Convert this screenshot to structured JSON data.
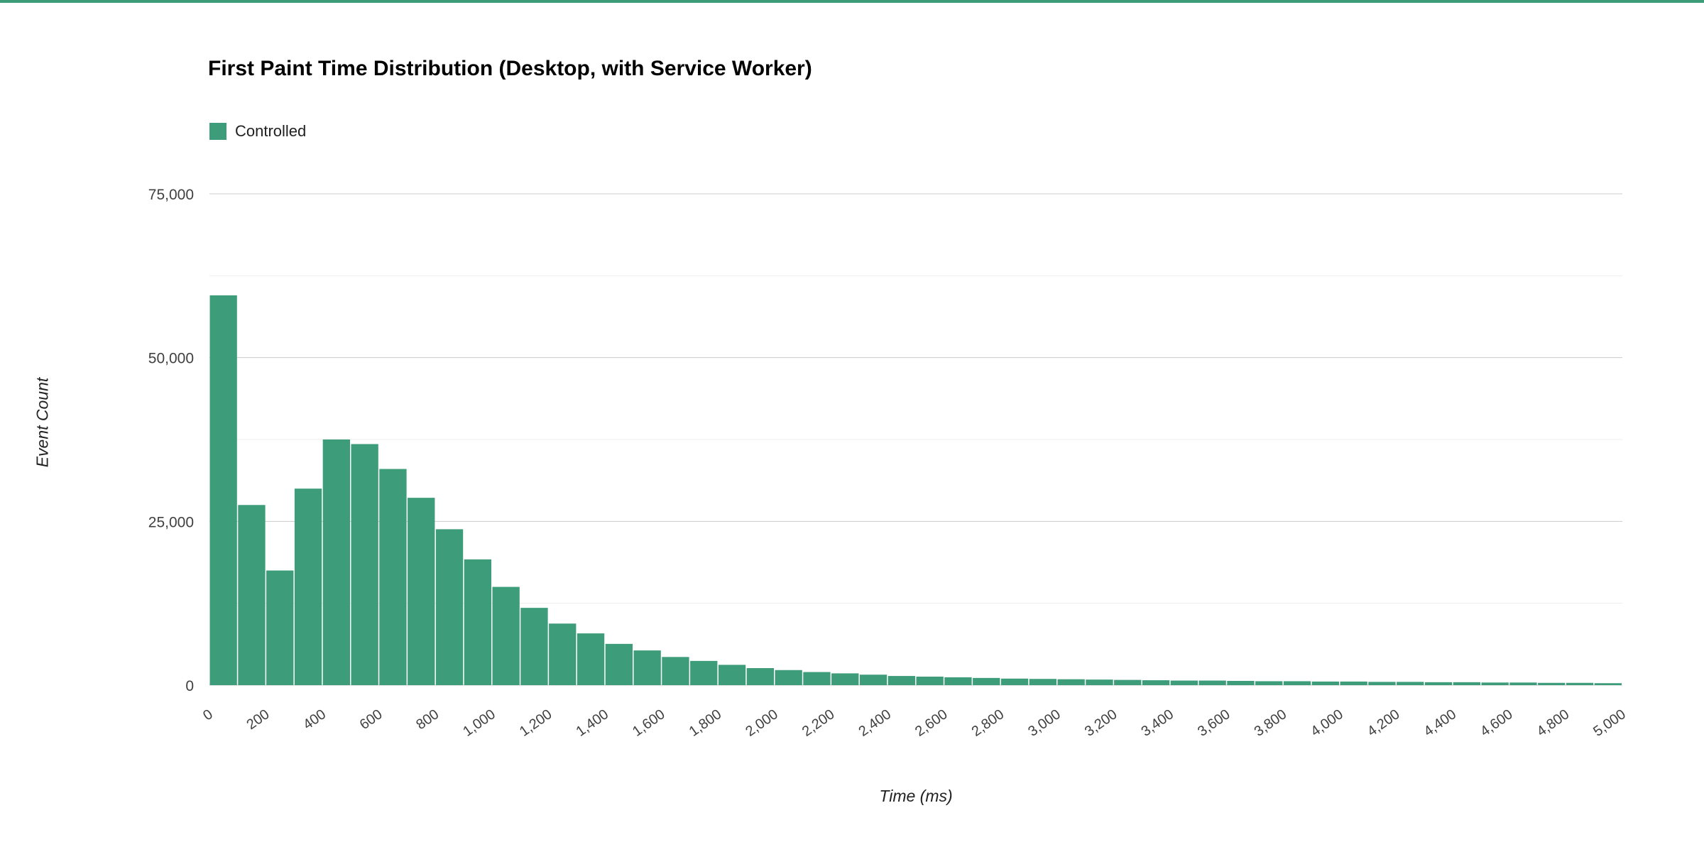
{
  "page": {
    "top_border_color": "#3d9c7a",
    "background": "#ffffff"
  },
  "chart_data": {
    "type": "bar",
    "title": "First Paint Time Distribution (Desktop, with Service Worker)",
    "legend": [
      {
        "label": "Controlled",
        "color": "#3d9c7a"
      }
    ],
    "xlabel": "Time (ms)",
    "ylabel": "Event Count",
    "bar_color": "#3d9c7a",
    "grid_major_color": "#cccccc",
    "grid_minor_color": "#eeeeee",
    "tick_text_color": "#404040",
    "bin_width_ms": 100,
    "x_start": 0,
    "x_end": 5000,
    "x_tick_interval": 200,
    "x_tick_labels": [
      "0",
      "200",
      "400",
      "600",
      "800",
      "1,000",
      "1,200",
      "1,400",
      "1,600",
      "1,800",
      "2,000",
      "2,200",
      "2,400",
      "2,600",
      "2,800",
      "3,000",
      "3,200",
      "3,400",
      "3,600",
      "3,800",
      "4,000",
      "4,200",
      "4,400",
      "4,600",
      "4,800",
      "5,000"
    ],
    "y_ticks": [
      0,
      25000,
      50000,
      75000
    ],
    "y_tick_labels": [
      "0",
      "25,000",
      "50,000",
      "75,000"
    ],
    "y_minor_ticks": [
      12500,
      37500,
      62500
    ],
    "ylim": [
      0,
      80000
    ],
    "grid": true,
    "legend_position": "top-left",
    "values": [
      59500,
      27500,
      17500,
      30000,
      37500,
      36800,
      33000,
      28600,
      23800,
      19200,
      15000,
      11800,
      9400,
      7900,
      6300,
      5300,
      4300,
      3700,
      3100,
      2600,
      2300,
      2000,
      1800,
      1600,
      1400,
      1300,
      1200,
      1100,
      1000,
      950,
      900,
      850,
      800,
      750,
      700,
      700,
      650,
      600,
      600,
      550,
      550,
      500,
      500,
      450,
      450,
      400,
      400,
      350,
      350,
      300
    ]
  }
}
